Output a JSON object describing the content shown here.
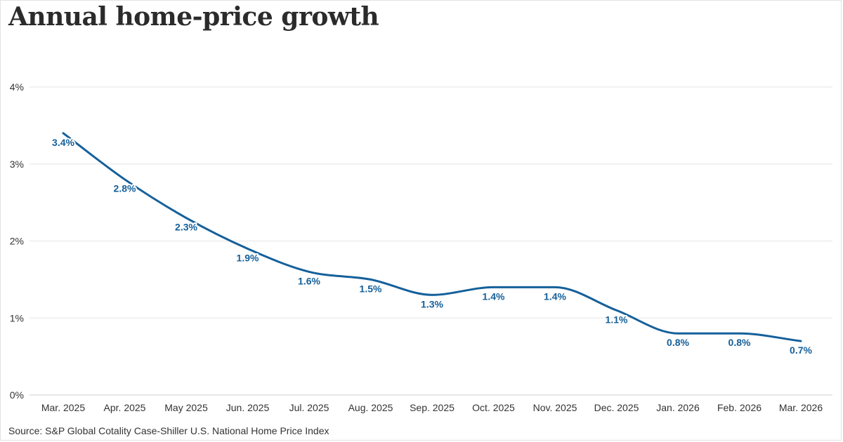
{
  "title": "Annual home-price growth",
  "source": "Source: S&P Global Cotality Case-Shiller U.S. National Home Price Index",
  "colors": {
    "line": "#15609a",
    "grid": "#e6e6e6",
    "text": "#333333"
  },
  "chart_data": {
    "type": "line",
    "title": "Annual home-price growth",
    "xlabel": "",
    "ylabel": "",
    "categories": [
      "Mar. 2025",
      "Apr. 2025",
      "May 2025",
      "Jun. 2025",
      "Jul. 2025",
      "Aug. 2025",
      "Sep. 2025",
      "Oct. 2025",
      "Nov. 2025",
      "Dec. 2025",
      "Jan. 2026",
      "Feb. 2026",
      "Mar. 2026"
    ],
    "series": [
      {
        "values": [
          3.4,
          2.8,
          2.3,
          1.9,
          1.6,
          1.5,
          1.3,
          1.4,
          1.4,
          1.1,
          0.8,
          0.8,
          0.7
        ],
        "labels": [
          "3.4%",
          "2.8%",
          "2.3%",
          "1.9%",
          "1.6%",
          "1.5%",
          "1.3%",
          "1.4%",
          "1.4%",
          "1.1%",
          "0.8%",
          "0.8%",
          "0.7%"
        ]
      }
    ],
    "ylim": [
      0,
      4
    ],
    "yticks": [
      0,
      1,
      2,
      3,
      4
    ],
    "ytick_labels": [
      "0%",
      "1%",
      "2%",
      "3%",
      "4%"
    ],
    "grid": true,
    "legend": "none"
  }
}
